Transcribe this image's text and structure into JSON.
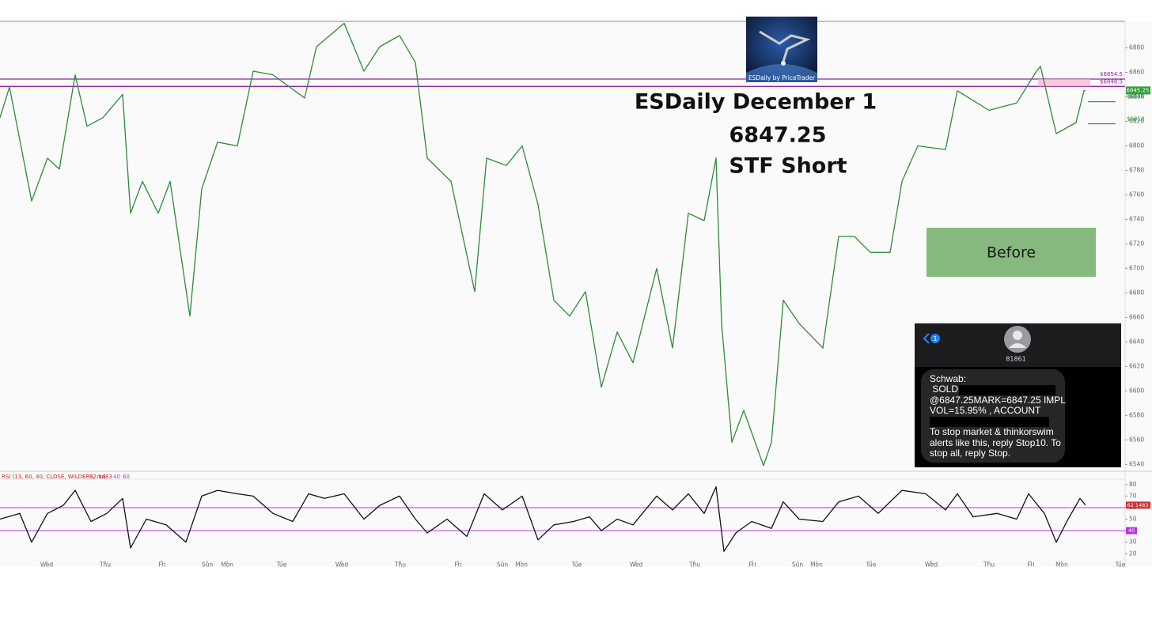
{
  "chart_data": [
    {
      "type": "line",
      "color": "#2e8b3a",
      "x": [
        0,
        1.2,
        4.0,
        6.0,
        7.5,
        9.5,
        11.0,
        13.0,
        15.5,
        16.5,
        18.0,
        20.0,
        21.5,
        24.0,
        25.5,
        27.5,
        30.0,
        32.0,
        34.5,
        38.5,
        40.0,
        43.5,
        46.0,
        48.0,
        50.5,
        52.5,
        54.0,
        57.0,
        60.0,
        61.5,
        64.0,
        66.0,
        68.0,
        70.0,
        72.0,
        74.0,
        76.0,
        78.0,
        80.0,
        83.0,
        85.0,
        87.0,
        89.0,
        90.5,
        91.2,
        92.5,
        94.0,
        96.5,
        97.5,
        99.0,
        101.0,
        104.0,
        106.0,
        108.0,
        110.0,
        112.5,
        114.0,
        116.0,
        119.5,
        121.0,
        125.0,
        128.5,
        131.0,
        131.5,
        133.5,
        136.0,
        137.0,
        137.2
      ],
      "values": [
        6823,
        6848,
        6755,
        6790,
        6781,
        6858,
        6816,
        6823,
        6842,
        6745,
        6771,
        6745,
        6771,
        6661,
        6765,
        6803,
        6800,
        6861,
        6858,
        6839,
        6881,
        6900,
        6861,
        6881,
        6890,
        6868,
        6790,
        6771,
        6681,
        6790,
        6784,
        6800,
        6752,
        6674,
        6661,
        6681,
        6603,
        6648,
        6623,
        6700,
        6635,
        6745,
        6739,
        6790,
        6655,
        6558,
        6584,
        6539,
        6558,
        6674,
        6655,
        6635,
        6726,
        6726,
        6713,
        6713,
        6771,
        6800,
        6797,
        6845,
        6829,
        6835,
        6861,
        6865,
        6810,
        6819,
        6845,
        6845.25
      ],
      "xlim": [
        0,
        142.2
      ],
      "ylim": [
        6535,
        6901
      ],
      "yticks": [
        6540,
        6560,
        6580,
        6600,
        6620,
        6640,
        6660,
        6680,
        6700,
        6720,
        6740,
        6760,
        6780,
        6800,
        6820,
        6840,
        6860,
        6880
      ],
      "last_price": 6845.25,
      "last_price_color": "#2e9e3a",
      "levels": [
        {
          "value": 6854.5,
          "label": "$6854.5",
          "color": "#8e24aa",
          "style": "full"
        },
        {
          "value": 6848.5,
          "label": "$6848.5",
          "color": "#8e24aa",
          "style": "full"
        },
        {
          "value": 6836,
          "label": "$6836",
          "color": "#2e8b3a",
          "style": "short"
        },
        {
          "value": 6818,
          "label": "$6818",
          "color": "#2e8b3a",
          "style": "short"
        }
      ]
    },
    {
      "type": "line",
      "color": "#111111",
      "title": "RSI (13, 60, 40, CLOSE, WILDERS, no)",
      "x": [
        0,
        2.5,
        4.0,
        6.0,
        8.0,
        9.5,
        11.5,
        13.5,
        15.5,
        16.5,
        18.5,
        21.0,
        23.5,
        25.5,
        27.5,
        30.0,
        32.0,
        34.5,
        37.0,
        39.0,
        41.0,
        43.5,
        46.0,
        48.0,
        50.5,
        52.5,
        54.0,
        56.5,
        59.0,
        61.2,
        63.5,
        66.0,
        68.0,
        70.0,
        72.5,
        74.5,
        76.0,
        78.0,
        80.0,
        83.0,
        85.0,
        87.0,
        89.0,
        90.5,
        91.5,
        93.0,
        95.0,
        97.5,
        99.0,
        101.0,
        104.0,
        106.0,
        108.5,
        111.0,
        114.0,
        117.0,
        119.5,
        121.0,
        123.0,
        126.0,
        128.5,
        130.0,
        132.0,
        133.5,
        135.0,
        136.5,
        137.2
      ],
      "values": [
        50,
        55,
        30,
        55,
        62,
        75,
        48,
        55,
        68,
        25,
        50,
        45,
        30,
        70,
        75,
        72,
        70,
        55,
        48,
        72,
        68,
        72,
        50,
        62,
        70,
        50,
        38,
        50,
        35,
        72,
        58,
        70,
        32,
        45,
        48,
        52,
        40,
        50,
        45,
        70,
        58,
        72,
        55,
        78,
        22,
        38,
        48,
        42,
        65,
        50,
        48,
        65,
        70,
        55,
        75,
        72,
        58,
        72,
        52,
        55,
        50,
        72,
        55,
        30,
        50,
        68,
        62.1483
      ],
      "xlim": [
        0,
        142.2
      ],
      "ylim": [
        14,
        84
      ],
      "yticks": [
        20,
        30,
        40,
        50,
        60,
        70,
        80
      ],
      "last_value": 62.1483,
      "last_value_color": "#d32f2f",
      "levels": [
        40,
        60
      ],
      "level_color": "#b03ad8",
      "xticks": [
        {
          "value": 5.9,
          "label": "Wed"
        },
        {
          "value": 13.3,
          "label": "Thu"
        },
        {
          "value": 20.5,
          "label": "Fri"
        },
        {
          "value": 26.2,
          "label": "Sun"
        },
        {
          "value": 28.7,
          "label": "Mon"
        },
        {
          "value": 35.6,
          "label": "Tue"
        },
        {
          "value": 43.2,
          "label": "Wed"
        },
        {
          "value": 50.6,
          "label": "Thu"
        },
        {
          "value": 57.9,
          "label": "Fri"
        },
        {
          "value": 63.5,
          "label": "Sun"
        },
        {
          "value": 65.9,
          "label": "Mon"
        },
        {
          "value": 72.9,
          "label": "Tue"
        },
        {
          "value": 80.4,
          "label": "Wed"
        },
        {
          "value": 87.8,
          "label": "Thu"
        },
        {
          "value": 95.1,
          "label": "Fri"
        },
        {
          "value": 100.8,
          "label": "Sun"
        },
        {
          "value": 103.2,
          "label": "Mon"
        },
        {
          "value": 110.1,
          "label": "Tue"
        },
        {
          "value": 117.7,
          "label": "Wed"
        },
        {
          "value": 125.0,
          "label": "Thu"
        },
        {
          "value": 130.3,
          "label": "Fri"
        },
        {
          "value": 134.2,
          "label": "Mon"
        },
        {
          "value": 141.6,
          "label": "Tue"
        }
      ]
    }
  ],
  "overlay": {
    "logo_caption": "ESDaily by PriceTrader",
    "title": "ESDaily December 1",
    "price": "6847.25",
    "signal": "STF Short",
    "button": "Before"
  },
  "message": {
    "badge": "1",
    "sender": "81861",
    "lines": [
      "Schwab:",
      " SOLD -",
      "@6847.25MARK=6847.25 IMPL",
      "VOL=15.95% , ACCOUNT",
      "To stop market & thinkorswim",
      "alerts like this, reply Stop10. To",
      "stop all, reply Stop."
    ]
  }
}
